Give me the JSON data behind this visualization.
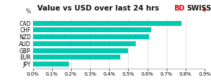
{
  "title": "Value vs USD over last 24 hrs",
  "categories": [
    "CAD",
    "CHF",
    "NZD",
    "AUD",
    "GBP",
    "EUR",
    "JPY"
  ],
  "values": [
    0.0078,
    0.0062,
    0.0061,
    0.0054,
    0.005,
    0.0046,
    0.0019
  ],
  "bar_color": "#00C9B0",
  "xlim": [
    0,
    0.009
  ],
  "xticks": [
    0.0,
    0.001,
    0.002,
    0.003,
    0.004,
    0.005,
    0.006,
    0.007,
    0.008,
    0.009
  ],
  "ylabel": "%",
  "background_color": "#ffffff",
  "logo_bd": "BD",
  "logo_swiss": "SWISS",
  "logo_arrow": "▶",
  "logo_color_bd": "#dd0000",
  "logo_color_swiss": "#111111",
  "logo_color_arrow": "#dd0000",
  "title_fontsize": 7.5,
  "tick_fontsize": 5.0,
  "ylabel_fontsize": 5.5,
  "bar_height": 0.72
}
